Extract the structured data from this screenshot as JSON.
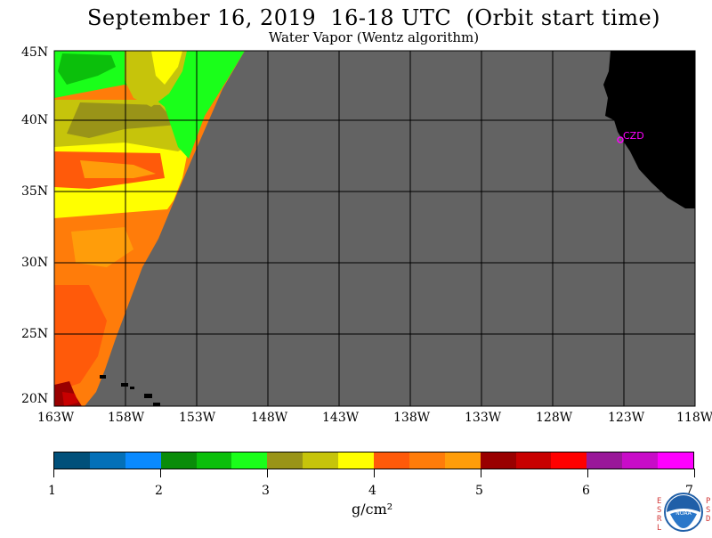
{
  "title": "September 16, 2019  16-18 UTC  (Orbit start time)",
  "subtitle": "Water Vapor (Wentz algorithm)",
  "map": {
    "lat_labels": [
      "45N",
      "40N",
      "35N",
      "30N",
      "25N",
      "20N"
    ],
    "lon_labels": [
      "163W",
      "158W",
      "153W",
      "148W",
      "143W",
      "138W",
      "133W",
      "128W",
      "123W",
      "118W"
    ],
    "station_label": "CZD",
    "colors": {
      "no_data": "#636363",
      "land": "#000000",
      "grid": "#000000",
      "station": "#ff00ff"
    }
  },
  "colorbar": {
    "colors": [
      "#01507a",
      "#0470b8",
      "#0a8aff",
      "#0a8c0a",
      "#0bbf0b",
      "#1aff1a",
      "#999418",
      "#c6c40b",
      "#ffff00",
      "#ff5a0a",
      "#ff7c0a",
      "#ff9d0a",
      "#990000",
      "#c80000",
      "#ff0000",
      "#991899",
      "#c80cc8",
      "#ff00ff"
    ],
    "tick_labels": [
      "1",
      "2",
      "3",
      "4",
      "5",
      "6",
      "7"
    ],
    "units": "g/cm²"
  },
  "logo": {
    "left_letters": [
      "E",
      "S",
      "R",
      "L"
    ],
    "right_letters": [
      "P",
      "S",
      "D"
    ],
    "text": "NOAA"
  }
}
